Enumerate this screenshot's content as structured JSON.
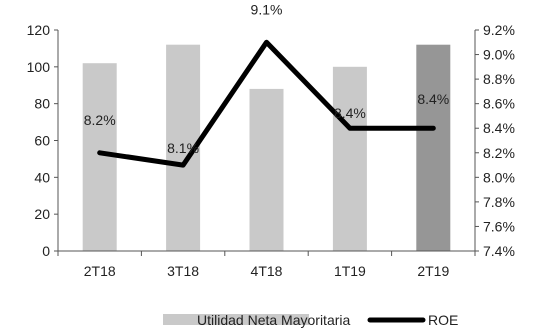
{
  "chart_data": {
    "type": "bar",
    "categories": [
      "2T18",
      "3T18",
      "4T18",
      "1T19",
      "2T19"
    ],
    "series": [
      {
        "name": "Utilidad Neta Mayoritaria",
        "type": "bar",
        "axis": "left",
        "values": [
          102,
          112,
          88,
          100,
          112
        ],
        "colors": [
          "#c9c9c9",
          "#c9c9c9",
          "#c9c9c9",
          "#c9c9c9",
          "#969696"
        ]
      },
      {
        "name": "ROE",
        "type": "line",
        "axis": "right",
        "values": [
          8.2,
          8.1,
          9.1,
          8.4,
          8.4
        ],
        "labels": [
          "8.2%",
          "8.1%",
          "9.1%",
          "8.4%",
          "8.4%"
        ],
        "color": "#000000"
      }
    ],
    "y_left": {
      "min": 0,
      "max": 120,
      "ticks": [
        "0",
        "20",
        "40",
        "60",
        "80",
        "100",
        "120"
      ]
    },
    "y_right": {
      "min": 7.4,
      "max": 9.2,
      "ticks": [
        "7.4%",
        "7.6%",
        "7.8%",
        "8.0%",
        "8.2%",
        "8.4%",
        "8.6%",
        "8.8%",
        "9.0%",
        "9.2%"
      ]
    },
    "legend_position": "bottom",
    "grid": false
  }
}
